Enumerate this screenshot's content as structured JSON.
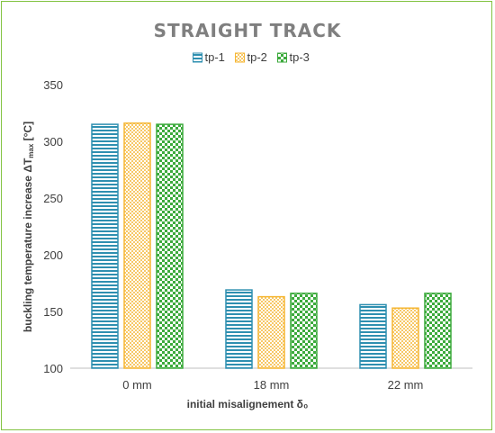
{
  "chart_data": {
    "type": "bar",
    "title": "STRAIGHT TRACK",
    "categories": [
      "0 mm",
      "18 mm",
      "22 mm"
    ],
    "series": [
      {
        "name": "tp-1",
        "values": [
          315,
          169,
          156
        ],
        "color": "#2e8fb0"
      },
      {
        "name": "tp-2",
        "values": [
          316,
          163,
          153
        ],
        "color": "#f5b632"
      },
      {
        "name": "tp-3",
        "values": [
          315,
          166,
          166
        ],
        "color": "#3caa3c"
      }
    ],
    "xlabel": "initial misalignement δ₀",
    "ylabel_main": "buckling temperature increase  ΔT",
    "ylabel_sub": "max",
    "ylabel_unit": " [°C]",
    "ylim": [
      100,
      350
    ],
    "yticks": [
      100,
      150,
      200,
      250,
      300,
      350
    ],
    "grid": false,
    "legend": "top"
  }
}
